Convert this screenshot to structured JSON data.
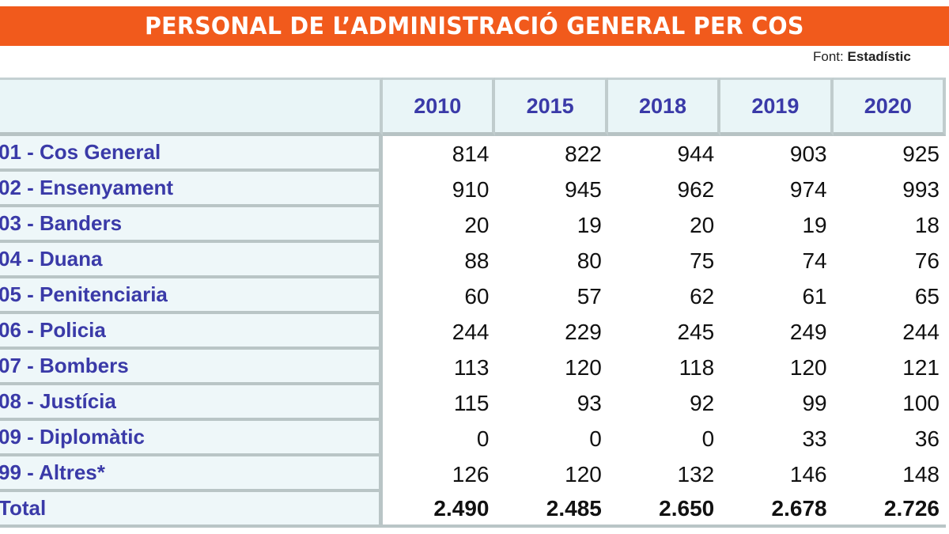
{
  "title": "PERSONAL DE L’ADMINISTRACIÓ GENERAL PER COS",
  "source": {
    "label": "Font:",
    "value": "Estadístic"
  },
  "table": {
    "columns": [
      "2010",
      "2015",
      "2018",
      "2019",
      "2020"
    ],
    "rows": [
      {
        "label": "01 - Cos General",
        "values": [
          "814",
          "822",
          "944",
          "903",
          "925"
        ]
      },
      {
        "label": "02 - Ensenyament",
        "values": [
          "910",
          "945",
          "962",
          "974",
          "993"
        ]
      },
      {
        "label": "03 - Banders",
        "values": [
          "20",
          "19",
          "20",
          "19",
          "18"
        ]
      },
      {
        "label": "04 - Duana",
        "values": [
          "88",
          "80",
          "75",
          "74",
          "76"
        ]
      },
      {
        "label": "05 - Penitenciaria",
        "values": [
          "60",
          "57",
          "62",
          "61",
          "65"
        ]
      },
      {
        "label": "06 - Policia",
        "values": [
          "244",
          "229",
          "245",
          "249",
          "244"
        ]
      },
      {
        "label": "07 - Bombers",
        "values": [
          "113",
          "120",
          "118",
          "120",
          "121"
        ]
      },
      {
        "label": "08 - Justícia",
        "values": [
          "115",
          "93",
          "92",
          "99",
          "100"
        ]
      },
      {
        "label": "09 - Diplomàtic",
        "values": [
          "0",
          "0",
          "0",
          "33",
          "36"
        ]
      },
      {
        "label": "99 - Altres*",
        "values": [
          "126",
          "120",
          "132",
          "146",
          "148"
        ]
      },
      {
        "label": "Total",
        "values": [
          "2.490",
          "2.485",
          "2.650",
          "2.678",
          "2.726"
        ]
      }
    ]
  },
  "colors": {
    "title_bar": "#f15a1c",
    "label_text": "#3a3aa8",
    "label_bg": "#eef7f9",
    "grid": "#b9c5c6"
  }
}
